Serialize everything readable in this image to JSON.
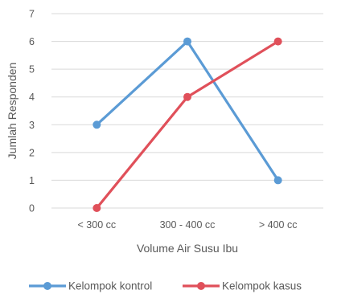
{
  "chart_data": {
    "type": "line",
    "title": "",
    "xlabel": "Volume Air Susu Ibu",
    "ylabel": "Jumlah Responden",
    "categories": [
      "< 300 cc",
      "300 - 400 cc",
      "> 400 cc"
    ],
    "ylim": [
      0,
      7
    ],
    "yticks": [
      "0",
      "1",
      "2",
      "3",
      "4",
      "5",
      "6",
      "7"
    ],
    "grid": true,
    "legend_position": "bottom",
    "series": [
      {
        "name": "Kelompok kontrol",
        "values": [
          3,
          6,
          1
        ],
        "color": "#5B9BD5"
      },
      {
        "name": "Kelompok kasus",
        "values": [
          0,
          4,
          6
        ],
        "color": "#E0505A"
      }
    ]
  }
}
